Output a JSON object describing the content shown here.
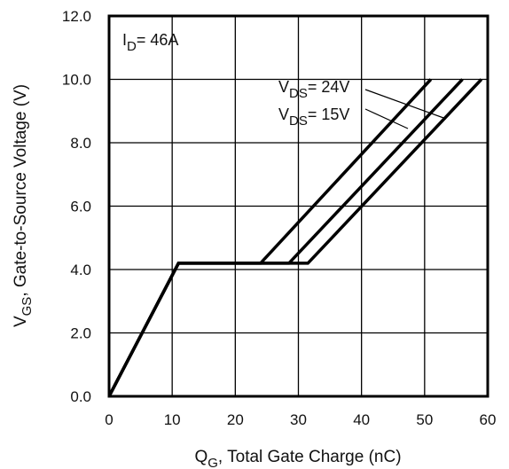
{
  "chart_data": {
    "type": "line",
    "xlabel": {
      "main": "Q",
      "sub": "G",
      "rest": ",  Total Gate Charge (nC)"
    },
    "ylabel": {
      "main": "V",
      "sub": "GS",
      "rest": ", Gate-to-Source Voltage (V)"
    },
    "xlim": [
      0,
      60
    ],
    "ylim": [
      0,
      12
    ],
    "xticks": [
      0,
      10,
      20,
      30,
      40,
      50,
      60
    ],
    "yticks": [
      0,
      2,
      4,
      6,
      8,
      10,
      12
    ],
    "xtick_labels": [
      "0",
      "10",
      "20",
      "30",
      "40",
      "50",
      "60"
    ],
    "ytick_labels": [
      "0.0",
      "2.0",
      "4.0",
      "6.0",
      "8.0",
      "10.0",
      "12.0"
    ],
    "grid": true,
    "series": [
      {
        "points": [
          [
            0,
            0
          ],
          [
            11,
            4.2
          ],
          [
            24,
            4.2
          ],
          [
            51,
            10
          ]
        ]
      },
      {
        "points": [
          [
            0,
            0
          ],
          [
            11,
            4.2
          ],
          [
            28.5,
            4.2
          ],
          [
            56,
            10
          ]
        ]
      },
      {
        "points": [
          [
            0,
            0
          ],
          [
            11,
            4.2
          ],
          [
            31.5,
            4.2
          ],
          [
            59,
            10
          ]
        ]
      }
    ],
    "annotations": {
      "id": {
        "main": "I",
        "sub": "D",
        "rest": "= 46A"
      },
      "vds_24": {
        "main": "V",
        "sub": "DS",
        "rest": "= 24V"
      },
      "vds_15": {
        "main": "V",
        "sub": "DS",
        "rest": "= 15V"
      }
    }
  }
}
